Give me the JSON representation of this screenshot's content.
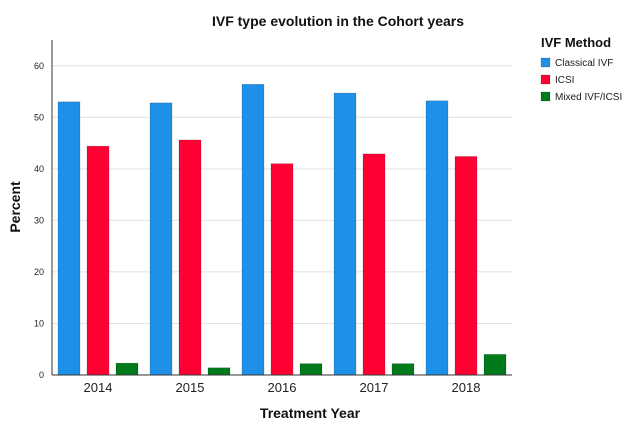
{
  "chart_data": {
    "type": "bar",
    "title": "IVF type evolution in the Cohort years",
    "xlabel": "Treatment Year",
    "ylabel": "Percent",
    "categories": [
      "2014",
      "2015",
      "2016",
      "2017",
      "2018"
    ],
    "series": [
      {
        "name": "Classical IVF",
        "color": "#1e90e8",
        "values": [
          53.0,
          52.8,
          56.4,
          54.7,
          53.2
        ]
      },
      {
        "name": "ICSI",
        "color": "#ff0033",
        "values": [
          44.4,
          45.6,
          41.0,
          42.9,
          42.4
        ]
      },
      {
        "name": "Mixed IVF/ICSI",
        "color": "#007a1a",
        "values": [
          2.3,
          1.4,
          2.2,
          2.2,
          4.0
        ]
      }
    ],
    "ylim": [
      0,
      65
    ],
    "yticks": [
      0,
      10,
      20,
      30,
      40,
      50,
      60
    ],
    "grid": true,
    "legend": {
      "title": "IVF Method",
      "placement": "right"
    }
  }
}
